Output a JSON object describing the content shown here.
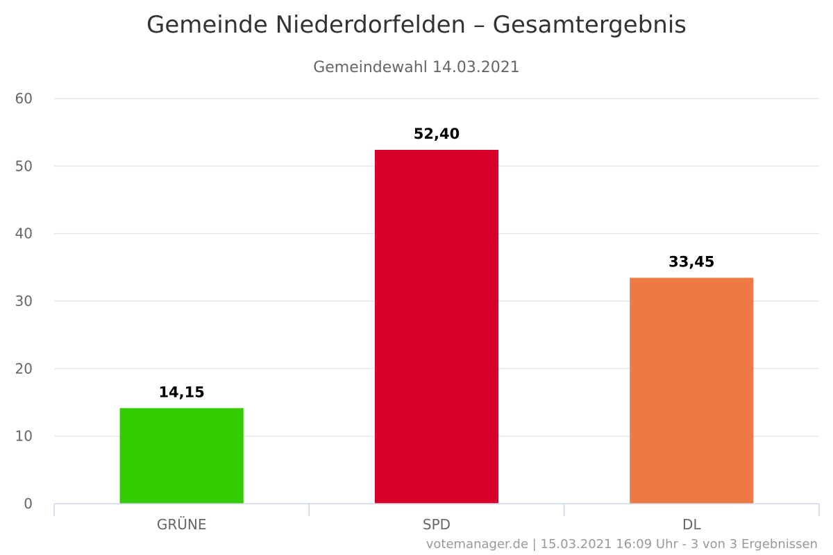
{
  "chart_data": {
    "type": "bar",
    "title": "Gemeinde Niederdorfelden – Gesamtergebnis",
    "subtitle": "Gemeindewahl 14.03.2021",
    "categories": [
      "GRÜNE",
      "SPD",
      "DL"
    ],
    "values": [
      14.15,
      52.4,
      33.45
    ],
    "value_labels": [
      "14,15",
      "52,40",
      "33,45"
    ],
    "colors": [
      "#33cc00",
      "#d6002a",
      "#ed7a45"
    ],
    "ylim": [
      0,
      60
    ],
    "yticks": [
      0,
      10,
      20,
      30,
      40,
      50,
      60
    ],
    "xlabel": "",
    "ylabel": "",
    "grid": true,
    "legend": "none"
  },
  "credit": "votemanager.de | 15.03.2021 16:09 Uhr - 3 von 3 Ergebnissen"
}
